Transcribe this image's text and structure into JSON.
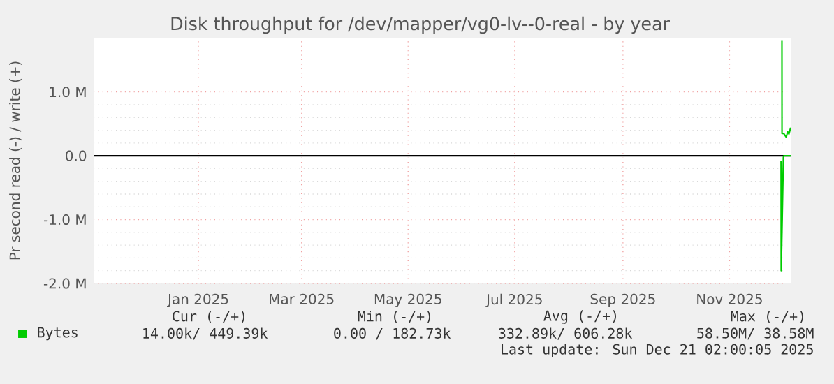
{
  "chart_data": {
    "type": "line",
    "title": "Disk throughput for /dev/mapper/vg0-lv--0-real - by year",
    "ylabel": "Pr second read (-) / write (+)",
    "xlim": [
      "2024-11-17",
      "2025-12-21"
    ],
    "xticks": [
      {
        "value": "2025-01-16",
        "label": "Jan 2025"
      },
      {
        "value": "2025-03-16",
        "label": "Mar 2025"
      },
      {
        "value": "2025-05-16",
        "label": "May 2025"
      },
      {
        "value": "2025-07-16",
        "label": "Jul 2025"
      },
      {
        "value": "2025-09-16",
        "label": "Sep 2025"
      },
      {
        "value": "2025-11-16",
        "label": "Nov 2025"
      }
    ],
    "ylim": [
      -2.0,
      1.85
    ],
    "yticks": [
      {
        "value": -2,
        "label": "-2.0 M"
      },
      {
        "value": -1,
        "label": "-1.0 M"
      },
      {
        "value": 0,
        "label": "0.0"
      },
      {
        "value": 1,
        "label": "1.0 M"
      }
    ],
    "series": [
      {
        "name": "Bytes",
        "color": "#00cc00",
        "x": [
          "2025-12-16T00:00",
          "2025-12-16T01:00",
          "2025-12-17",
          "2025-12-18T12:00",
          "2025-12-19T06:00",
          "2025-12-20",
          "2025-12-21"
        ],
        "values": [
          1.8,
          0.35,
          0.35,
          0.29,
          0.38,
          0.34,
          0.44
        ]
      },
      {
        "color": "#00cc00",
        "x": [
          "2025-12-15T12:00",
          "2025-12-15T14:00",
          "2025-12-16T20:00",
          "2025-12-17T02:00",
          "2025-12-21"
        ],
        "values": [
          -0.08,
          -1.8,
          -0.02,
          0,
          0
        ]
      }
    ],
    "ref_lines": [
      {
        "axis": "y",
        "value": 0,
        "color": "#000000"
      }
    ],
    "grid": true,
    "legend": "bottom left",
    "annotations": [
      "Cur (-/+)",
      "Min (-/+)",
      "Avg (-/+)",
      "Max (-/+)",
      "14.00k/  449.39k",
      "0.00 /  182.73k",
      "332.89k/  606.28k",
      "58.50M/   38.58M",
      "Last update: Sun Dec 21 02:00:05 2025"
    ]
  }
}
